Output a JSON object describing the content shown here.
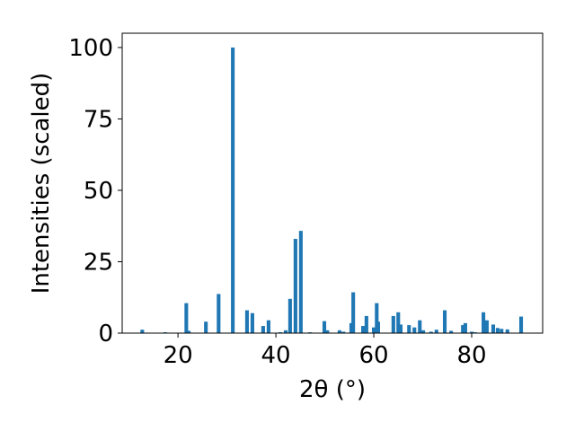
{
  "chart_data": {
    "type": "bar",
    "xlabel": "2θ (°)",
    "ylabel": "Intensities (scaled)",
    "x": [
      12.7,
      17.4,
      21.7,
      22.2,
      25.7,
      28.3,
      31.2,
      34.1,
      35.2,
      37.4,
      38.5,
      40.9,
      42.0,
      42.9,
      44.0,
      45.1,
      47.0,
      49.9,
      50.5,
      53.0,
      53.8,
      55.4,
      55.8,
      57.8,
      58.5,
      60.0,
      60.6,
      60.9,
      64.0,
      65.0,
      65.5,
      67.2,
      68.3,
      69.4,
      70.1,
      71.7,
      72.8,
      74.5,
      75.8,
      78.2,
      78.7,
      80.0,
      80.7,
      82.4,
      83.1,
      84.4,
      85.3,
      86.1,
      87.3,
      90.1
    ],
    "values": [
      1.2,
      0.3,
      10.5,
      0.8,
      4,
      13.7,
      100,
      8,
      7,
      2.5,
      4.5,
      0.3,
      1,
      12,
      33,
      35.8,
      0.3,
      4.2,
      1,
      1,
      0.5,
      3.5,
      14.3,
      2.5,
      6,
      2,
      10.5,
      4,
      6,
      7.3,
      3,
      2.8,
      2,
      4.5,
      1,
      0.5,
      1.2,
      8,
      0.8,
      2.8,
      3.5,
      0.5,
      0.3,
      7.3,
      4.5,
      3,
      1.8,
      1.5,
      1.3,
      5.8
    ],
    "color": "#1f77b4",
    "xlim": [
      8.6,
      94.5
    ],
    "xticks": [
      20,
      40,
      60,
      80
    ],
    "ylim": [
      0,
      105
    ],
    "yticks": [
      0,
      25,
      50,
      75,
      100
    ]
  }
}
